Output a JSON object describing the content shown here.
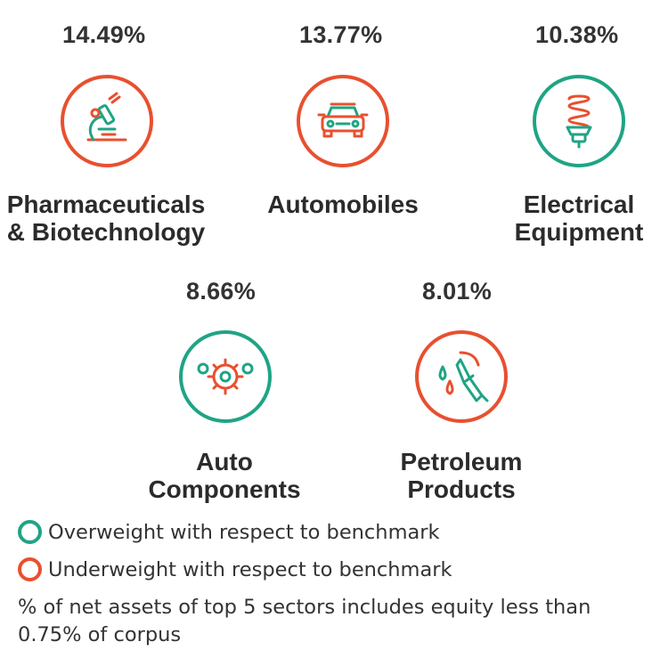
{
  "colors": {
    "overweight": "#1fa484",
    "underweight": "#e8502f"
  },
  "sectors": [
    {
      "pct": "14.49%",
      "name_line1": "Pharmaceuticals",
      "name_line2": "& Biotechnology",
      "weighting": "underweight",
      "icon": "microscope-icon"
    },
    {
      "pct": "13.77%",
      "name_line1": "Automobiles",
      "name_line2": "",
      "weighting": "underweight",
      "icon": "car-icon"
    },
    {
      "pct": "10.38%",
      "name_line1": "Electrical",
      "name_line2": "Equipment",
      "weighting": "overweight",
      "icon": "bulb-icon"
    },
    {
      "pct": "8.66%",
      "name_line1": "Auto",
      "name_line2": "Components",
      "weighting": "overweight",
      "icon": "gears-icon"
    },
    {
      "pct": "8.01%",
      "name_line1": "Petroleum",
      "name_line2": "Products",
      "weighting": "underweight",
      "icon": "fuel-nozzle-icon"
    }
  ],
  "legend": {
    "overweight": "Overweight with respect to benchmark",
    "underweight": "Underweight with respect to benchmark"
  },
  "note": "% of net assets of top 5 sectors includes equity less than 0.75% of corpus"
}
